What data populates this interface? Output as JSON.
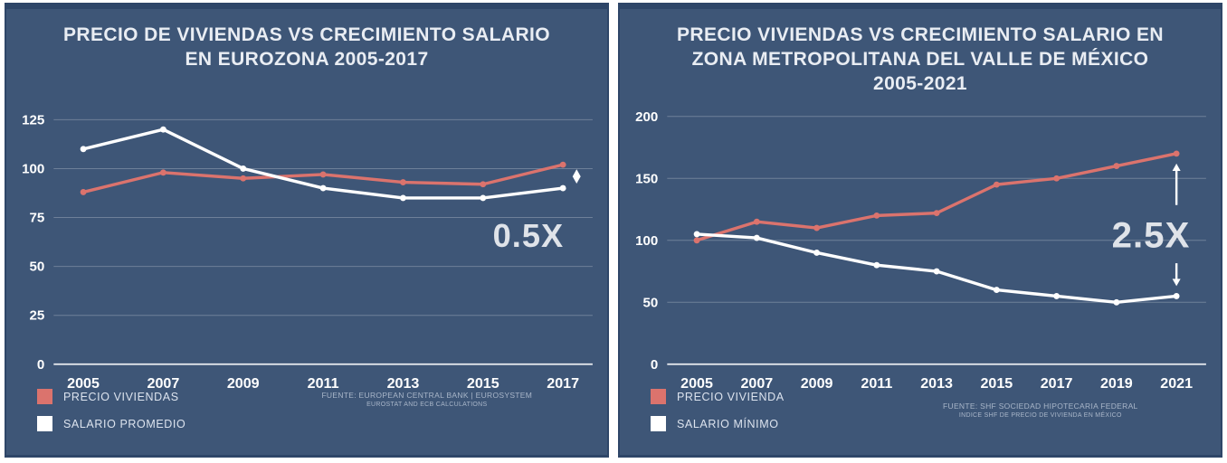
{
  "colors": {
    "panel_background": "#3e5677",
    "panel_border": "#2e4668",
    "house_price_red": "#db736d",
    "salary_white": "#ffffff",
    "grid_line": "rgba(255,255,255,0.25)",
    "baseline": "rgba(255,255,255,0.9)",
    "annotation_text": "#dfe3e9"
  },
  "chart_data": [
    {
      "type": "line",
      "title_lines": [
        "PRECIO DE VIVIENDAS VS  CRECIMIENTO SALARIO",
        "EN EUROZONA 2005-2017"
      ],
      "categories": [
        "2005",
        "2007",
        "2009",
        "2011",
        "2013",
        "2015",
        "2017"
      ],
      "series": [
        {
          "name": "PRECIO VIVIENDAS",
          "color": "#db736d",
          "values": [
            88,
            98,
            95,
            97,
            93,
            92,
            102
          ]
        },
        {
          "name": "SALARIO PROMEDIO",
          "color": "#ffffff",
          "values": [
            110,
            120,
            100,
            90,
            85,
            85,
            90
          ]
        }
      ],
      "xlabel": "",
      "ylabel": "",
      "ylim": [
        0,
        133
      ],
      "yticks": [
        0,
        25,
        50,
        75,
        100,
        125
      ],
      "grid": true,
      "legend_position": "bottom-left",
      "annotation": {
        "label": "0.5X",
        "type": "range-dashed",
        "label_y": 66,
        "label_size": 36
      },
      "source_lines": [
        "FUENTE: EUROPEAN CENTRAL BANK | EUROSYSTEM",
        "EUROSTAT AND ECB CALCULATIONS"
      ]
    },
    {
      "type": "line",
      "title_lines": [
        "PRECIO VIVIENDAS VS CRECIMIENTO SALARIO EN",
        "ZONA METROPOLITANA DEL VALLE DE MÉXICO",
        "2005-2021"
      ],
      "categories": [
        "2005",
        "2007",
        "2009",
        "2011",
        "2013",
        "2015",
        "2017",
        "2019",
        "2021"
      ],
      "series": [
        {
          "name": "PRECIO VIVIENDA",
          "color": "#db736d",
          "values": [
            100,
            115,
            110,
            120,
            122,
            145,
            150,
            160,
            170
          ]
        },
        {
          "name": "SALARIO MÍNIMO",
          "color": "#ffffff",
          "values": [
            105,
            102,
            90,
            80,
            75,
            60,
            55,
            50,
            55
          ]
        }
      ],
      "xlabel": "",
      "ylabel": "",
      "ylim": [
        0,
        210
      ],
      "yticks": [
        0,
        50,
        100,
        150,
        200
      ],
      "grid": true,
      "legend_position": "bottom-left",
      "annotation": {
        "label": "2.5X",
        "type": "range-split",
        "label_y": 105,
        "label_size": 40
      },
      "source_lines": [
        "FUENTE:  SHF SOCIEDAD HIPOTECARIA FEDERAL",
        "INDICE SHF DE PRECIO DE VIVIENDA EN MÉXICO"
      ]
    }
  ]
}
